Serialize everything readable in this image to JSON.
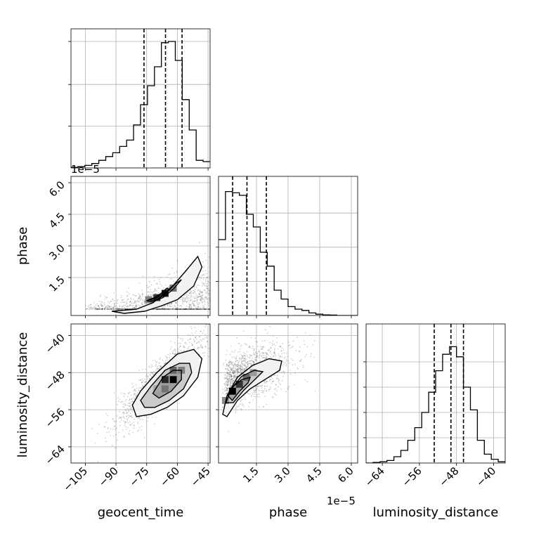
{
  "chart_data": {
    "type": "corner",
    "parameters": [
      "geocent_time",
      "phase",
      "luminosity_distance"
    ],
    "offset_text": "1e−5",
    "grid": true,
    "quantile_lines": "dashed",
    "ranges": {
      "geocent_time": [
        -112,
        -44
      ],
      "phase": [
        -0.3,
        6.3
      ],
      "luminosity_distance": [
        -67.5,
        -37.5
      ]
    },
    "ticks": {
      "geocent_time": [
        -105,
        -90,
        -75,
        -60,
        -45
      ],
      "phase": [
        1.5,
        3.0,
        4.5,
        6.0
      ],
      "luminosity_distance": [
        -64,
        -56,
        -48,
        -40
      ]
    },
    "tick_labels": {
      "geocent_time_x": [
        "−105",
        "−90",
        "−75",
        "−60",
        "−45"
      ],
      "phase_x": [
        "1.5",
        "3.0",
        "4.5",
        "6.0"
      ],
      "phase_y": [
        "1.5",
        "3.0",
        "4.5",
        "6.0"
      ],
      "luminosity_distance_x": [
        "−64",
        "−56",
        "−48",
        "−40"
      ],
      "luminosity_distance_y": [
        "−40",
        "−48",
        "−56",
        "−64"
      ]
    },
    "hist_ymax": {
      "geocent_time": 1.0,
      "phase": 1.0,
      "luminosity_distance": 1.0
    },
    "hist_ticks": {
      "geocent_time": [
        0.33,
        0.66,
        1.0
      ],
      "phase": [
        0.27,
        0.54,
        0.81
      ],
      "luminosity_distance": [
        0.2,
        0.4,
        0.6,
        0.8
      ]
    },
    "histograms": {
      "geocent_time": {
        "edges": [
          -112,
          -108.6,
          -105.2,
          -101.8,
          -98.4,
          -95,
          -91.6,
          -88.2,
          -84.8,
          -81.4,
          -78,
          -74.6,
          -71.2,
          -67.8,
          -64.4,
          -61,
          -57.6,
          -54.2,
          -50.8,
          -47.4,
          -44
        ],
        "counts": [
          0.005,
          0.01,
          0.02,
          0.035,
          0.06,
          0.09,
          0.12,
          0.17,
          0.22,
          0.34,
          0.5,
          0.65,
          0.8,
          0.99,
          1.0,
          0.85,
          0.54,
          0.3,
          0.06,
          0.05
        ],
        "quantiles": [
          -76.3,
          -65.8,
          -57.7
        ]
      },
      "phase": {
        "edges": [
          -0.3,
          0.03,
          0.36,
          0.69,
          1.02,
          1.35,
          1.68,
          2.01,
          2.34,
          2.67,
          3.0,
          3.33,
          3.66,
          3.99,
          4.32,
          4.65,
          4.98,
          5.31,
          5.64,
          5.97,
          6.3
        ],
        "counts": [
          0.6,
          0.98,
          0.97,
          0.95,
          0.8,
          0.7,
          0.5,
          0.39,
          0.2,
          0.13,
          0.07,
          0.05,
          0.04,
          0.02,
          0.01,
          0.005,
          0.003,
          0.0,
          0.0,
          0.0
        ],
        "quantiles": [
          0.37,
          1.05,
          1.97
        ]
      },
      "luminosity_distance": {
        "edges": [
          -67.5,
          -66,
          -64.5,
          -63,
          -61.5,
          -60,
          -58.5,
          -57,
          -55.5,
          -54,
          -52.5,
          -51,
          -49.5,
          -48,
          -46.5,
          -45,
          -43.5,
          -42,
          -40.5,
          -39,
          -37.5
        ],
        "counts": [
          0.0,
          0.005,
          0.01,
          0.02,
          0.05,
          0.1,
          0.18,
          0.28,
          0.4,
          0.56,
          0.73,
          0.86,
          0.92,
          0.84,
          0.6,
          0.42,
          0.18,
          0.07,
          0.03,
          0.01
        ],
        "quantiles": [
          -52.8,
          -49.2,
          -46.5
        ]
      }
    },
    "pairs": [
      {
        "x": "geocent_time",
        "y": "phase",
        "correlation": "positive-curved",
        "contours": [
          [
            [
              -80,
              0.0
            ],
            [
              -72,
              0.3
            ],
            [
              -64,
              0.9
            ],
            [
              -56,
              1.8
            ],
            [
              -50,
              2.5
            ],
            [
              -48,
              2.0
            ],
            [
              -52,
              1.1
            ],
            [
              -60,
              0.45
            ],
            [
              -68,
              0.15
            ],
            [
              -76,
              -0.1
            ],
            [
              -86,
              -0.2
            ],
            [
              -92,
              -0.1
            ]
          ],
          [
            [
              -72,
              0.35
            ],
            [
              -67,
              0.55
            ],
            [
              -62,
              0.95
            ],
            [
              -58,
              1.4
            ],
            [
              -61,
              1.2
            ],
            [
              -66,
              0.8
            ],
            [
              -70,
              0.55
            ],
            [
              -75,
              0.4
            ]
          ],
          [
            [
              -72,
              0.42
            ],
            [
              -69,
              0.5
            ],
            [
              -66,
              0.7
            ],
            [
              -64,
              0.9
            ],
            [
              -65,
              1.0
            ],
            [
              -68,
              0.75
            ],
            [
              -71,
              0.55
            ],
            [
              -74,
              0.45
            ]
          ]
        ]
      },
      {
        "x": "geocent_time",
        "y": "luminosity_distance",
        "correlation": "positive",
        "contours": [
          [
            [
              -82,
              -55
            ],
            [
              -78,
              -52
            ],
            [
              -70,
              -48
            ],
            [
              -60,
              -44
            ],
            [
              -52,
              -43
            ],
            [
              -48,
              -45
            ],
            [
              -50,
              -49
            ],
            [
              -57,
              -53
            ],
            [
              -65,
              -55.5
            ],
            [
              -73,
              -57
            ],
            [
              -80,
              -57.5
            ]
          ],
          [
            [
              -78,
              -54
            ],
            [
              -73,
              -51
            ],
            [
              -66,
              -47.5
            ],
            [
              -59,
              -46
            ],
            [
              -54,
              -46
            ],
            [
              -53,
              -48
            ],
            [
              -57,
              -51.5
            ],
            [
              -64,
              -54
            ],
            [
              -71,
              -55.5
            ],
            [
              -76,
              -55.5
            ]
          ],
          [
            [
              -72,
              -52.5
            ],
            [
              -67,
              -49
            ],
            [
              -62,
              -47.5
            ],
            [
              -58,
              -47.5
            ],
            [
              -58,
              -49.5
            ],
            [
              -63,
              -52
            ],
            [
              -69,
              -53.5
            ]
          ]
        ]
      },
      {
        "x": "phase",
        "y": "luminosity_distance",
        "correlation": "positive-saturating",
        "contours": [
          [
            [
              -0.1,
              -57
            ],
            [
              0.1,
              -53
            ],
            [
              0.6,
              -49
            ],
            [
              1.3,
              -46.5
            ],
            [
              2.1,
              -45
            ],
            [
              2.7,
              -45.5
            ],
            [
              2.6,
              -47.5
            ],
            [
              1.9,
              -49.5
            ],
            [
              1.2,
              -51.5
            ],
            [
              0.6,
              -54
            ],
            [
              0.1,
              -57.5
            ]
          ],
          [
            [
              0.05,
              -54.5
            ],
            [
              0.3,
              -51.5
            ],
            [
              0.8,
              -48.8
            ],
            [
              1.4,
              -47.5
            ],
            [
              1.8,
              -47.8
            ],
            [
              1.4,
              -49.6
            ],
            [
              0.9,
              -51.8
            ],
            [
              0.4,
              -54.5
            ]
          ],
          [
            [
              0.15,
              -53
            ],
            [
              0.4,
              -51
            ],
            [
              0.8,
              -49.5
            ],
            [
              1.2,
              -49
            ],
            [
              1.1,
              -50.2
            ],
            [
              0.7,
              -52
            ],
            [
              0.35,
              -54
            ]
          ]
        ]
      }
    ],
    "density_peaks": [
      {
        "x": "geocent_time",
        "y": "phase",
        "cells": [
          [
            -66,
            0.75,
            0.9
          ],
          [
            -70,
            0.55,
            0.8
          ],
          [
            -62,
            1.0,
            0.55
          ],
          [
            -74,
            0.45,
            0.5
          ]
        ]
      },
      {
        "x": "geocent_time",
        "y": "luminosity_distance",
        "cells": [
          [
            -62,
            -49.5,
            1.0
          ],
          [
            -66,
            -49.5,
            0.85
          ],
          [
            -62,
            -47.5,
            0.6
          ],
          [
            -58,
            -47.5,
            0.5
          ],
          [
            -66,
            -51.5,
            0.55
          ],
          [
            -70,
            -51.5,
            0.35
          ]
        ]
      },
      {
        "x": "phase",
        "y": "luminosity_distance",
        "cells": [
          [
            0.36,
            -52,
            1.0
          ],
          [
            0.69,
            -50.5,
            0.8
          ],
          [
            1.02,
            -49,
            0.6
          ],
          [
            0.03,
            -54,
            0.45
          ],
          [
            1.35,
            -48,
            0.4
          ]
        ]
      }
    ]
  }
}
